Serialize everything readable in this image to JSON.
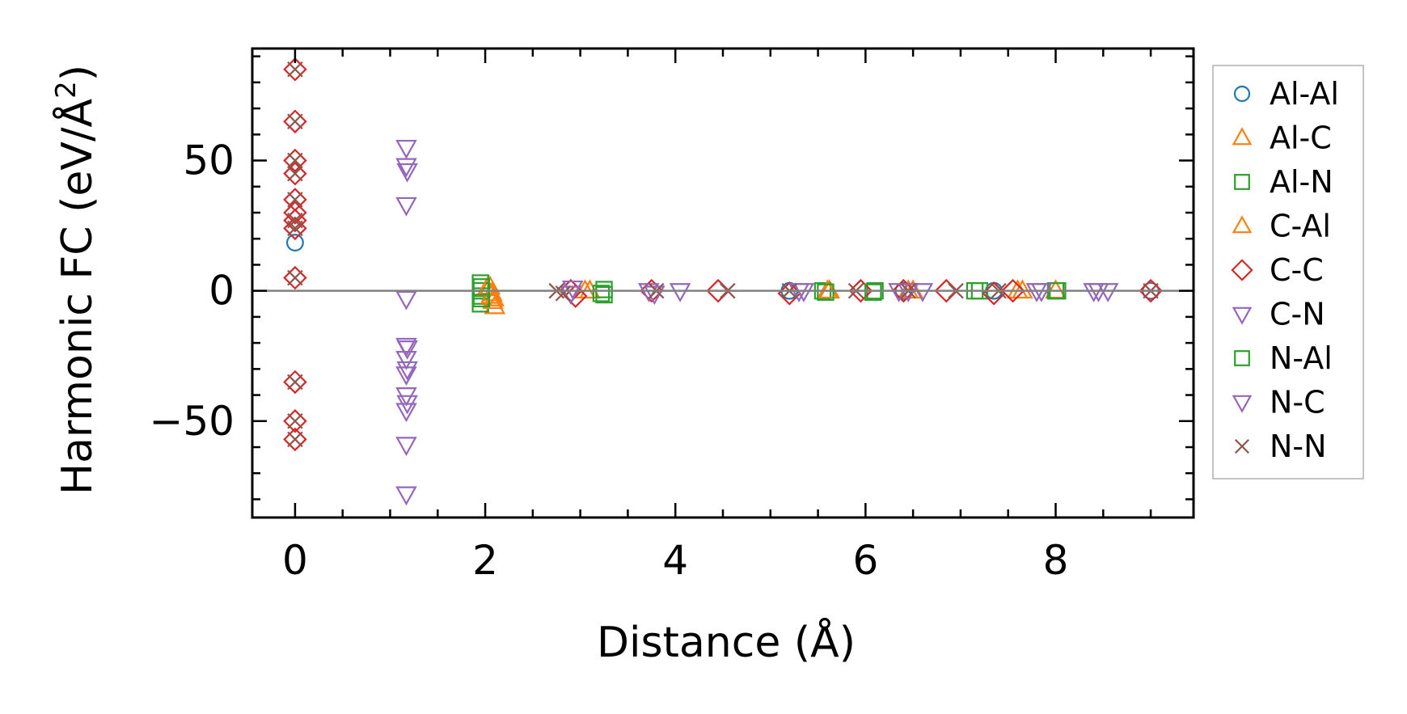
{
  "chart_data": {
    "type": "scatter",
    "xlabel": "Distance (Å)",
    "ylabel_main": "Harmonic FC (eV/Å",
    "ylabel_sup": "2",
    "ylabel_close": ")",
    "xlim": [
      -0.45,
      9.45
    ],
    "ylim": [
      -87,
      93
    ],
    "xticks": [
      0,
      2,
      4,
      6,
      8
    ],
    "xtick_labels": [
      "0",
      "2",
      "4",
      "6",
      "8"
    ],
    "yticks": [
      -50,
      0,
      50
    ],
    "ytick_labels": [
      "−50",
      "0",
      "50"
    ],
    "zero_line": 0,
    "grid": false,
    "legend_position": "outside-right",
    "series": [
      {
        "name": "Al-Al",
        "marker": "circle",
        "color": "#1f77b4",
        "points": [
          [
            0,
            18.5
          ],
          [
            5.2,
            0
          ],
          [
            6.4,
            0
          ],
          [
            7.35,
            0
          ],
          [
            9.0,
            0
          ]
        ]
      },
      {
        "name": "Al-C",
        "marker": "triangle-up",
        "color": "#ff7f0e",
        "points": [
          [
            2.05,
            1.5
          ],
          [
            2.07,
            -1
          ],
          [
            2.09,
            -3
          ],
          [
            2.1,
            -6
          ],
          [
            3.1,
            0
          ],
          [
            5.62,
            0
          ],
          [
            6.45,
            0
          ],
          [
            7.65,
            0
          ],
          [
            8.0,
            0
          ]
        ]
      },
      {
        "name": "Al-N",
        "marker": "square",
        "color": "#2ca02c",
        "points": [
          [
            1.95,
            3
          ],
          [
            1.95,
            0
          ],
          [
            1.95,
            -2
          ],
          [
            1.95,
            -5
          ],
          [
            3.25,
            0.5
          ],
          [
            3.25,
            -1.5
          ],
          [
            5.55,
            0
          ],
          [
            6.1,
            0
          ],
          [
            7.2,
            0
          ],
          [
            8.0,
            0
          ]
        ]
      },
      {
        "name": "C-Al",
        "marker": "triangle-up",
        "color": "#ff7f0e",
        "points": [
          [
            2.02,
            1
          ],
          [
            2.06,
            -2
          ],
          [
            2.08,
            -4
          ],
          [
            3.05,
            0
          ],
          [
            5.6,
            0
          ],
          [
            6.5,
            0
          ],
          [
            7.6,
            0
          ]
        ]
      },
      {
        "name": "C-C",
        "marker": "diamond",
        "color": "#d62728",
        "points": [
          [
            0,
            85
          ],
          [
            0,
            65
          ],
          [
            0,
            50
          ],
          [
            0,
            45
          ],
          [
            0,
            35
          ],
          [
            0,
            30
          ],
          [
            0,
            27
          ],
          [
            0,
            24
          ],
          [
            0,
            5
          ],
          [
            0,
            -35
          ],
          [
            0,
            -50
          ],
          [
            0,
            -57
          ],
          [
            2.9,
            0
          ],
          [
            2.95,
            -2
          ],
          [
            3.75,
            0
          ],
          [
            4.45,
            0
          ],
          [
            5.2,
            -1
          ],
          [
            5.95,
            0
          ],
          [
            6.4,
            0
          ],
          [
            6.85,
            0
          ],
          [
            7.35,
            -1
          ],
          [
            7.55,
            0
          ],
          [
            9.0,
            0
          ]
        ]
      },
      {
        "name": "C-N",
        "marker": "triangle-down",
        "color": "#9467bd",
        "points": [
          [
            1.17,
            55
          ],
          [
            1.17,
            48
          ],
          [
            1.17,
            33
          ],
          [
            1.17,
            -3
          ],
          [
            1.17,
            -21
          ],
          [
            1.17,
            -26
          ],
          [
            1.17,
            -32
          ],
          [
            1.17,
            -40
          ],
          [
            1.17,
            -46
          ],
          [
            1.17,
            -59
          ],
          [
            1.17,
            -78
          ],
          [
            2.92,
            1
          ],
          [
            3.72,
            0
          ],
          [
            4.05,
            0
          ],
          [
            5.35,
            0
          ],
          [
            6.45,
            0
          ],
          [
            6.6,
            0
          ],
          [
            7.8,
            0
          ],
          [
            8.45,
            0
          ],
          [
            8.55,
            0
          ]
        ]
      },
      {
        "name": "N-Al",
        "marker": "square",
        "color": "#2ca02c",
        "points": [
          [
            1.96,
            1.5
          ],
          [
            1.96,
            -3
          ],
          [
            3.22,
            -1
          ],
          [
            5.58,
            -0.5
          ],
          [
            6.08,
            -0.5
          ],
          [
            7.15,
            0
          ],
          [
            8.02,
            0
          ]
        ]
      },
      {
        "name": "N-C",
        "marker": "triangle-down",
        "color": "#9467bd",
        "points": [
          [
            1.18,
            46
          ],
          [
            1.18,
            -22
          ],
          [
            1.18,
            -30
          ],
          [
            1.18,
            -43
          ],
          [
            2.9,
            -1
          ],
          [
            3.78,
            -1
          ],
          [
            5.3,
            0
          ],
          [
            6.35,
            0
          ],
          [
            7.85,
            0
          ],
          [
            8.4,
            0
          ]
        ]
      },
      {
        "name": "N-N",
        "marker": "x",
        "color": "#8c564b",
        "points": [
          [
            0,
            85
          ],
          [
            0,
            65
          ],
          [
            0,
            50
          ],
          [
            0,
            45
          ],
          [
            0,
            35
          ],
          [
            0,
            27
          ],
          [
            0,
            24
          ],
          [
            0,
            5
          ],
          [
            0,
            -35
          ],
          [
            0,
            -50
          ],
          [
            0,
            -57
          ],
          [
            2.75,
            0
          ],
          [
            2.82,
            -1
          ],
          [
            3.8,
            0
          ],
          [
            4.55,
            0
          ],
          [
            5.2,
            0
          ],
          [
            5.9,
            0
          ],
          [
            6.45,
            0
          ],
          [
            6.95,
            0
          ],
          [
            7.4,
            0
          ],
          [
            9.0,
            0
          ]
        ]
      }
    ]
  }
}
